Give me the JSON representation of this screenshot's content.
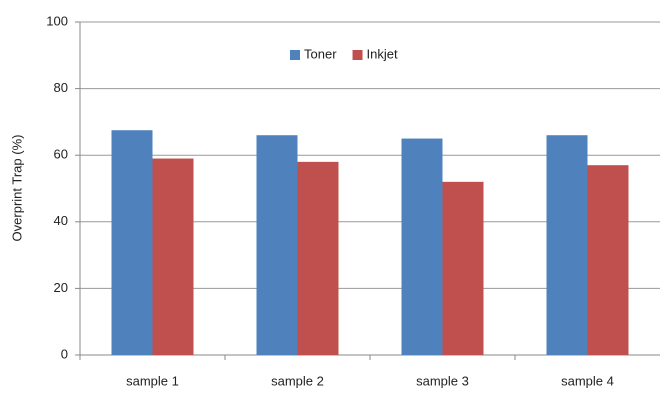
{
  "chart_data": {
    "type": "bar",
    "y_label": "Overprint Trap (%)",
    "categories": [
      "sample 1",
      "sample 2",
      "sample 3",
      "sample 4"
    ],
    "series": [
      {
        "name": "Toner",
        "color": "#4f81bd",
        "values": [
          67.5,
          66,
          65,
          66
        ]
      },
      {
        "name": "Inkjet",
        "color": "#c0504d",
        "values": [
          59,
          58,
          52,
          57
        ]
      }
    ],
    "ylim": [
      0,
      100
    ],
    "yticks": [
      0,
      20,
      40,
      60,
      80,
      100
    ],
    "grid": true,
    "legend": "top"
  }
}
